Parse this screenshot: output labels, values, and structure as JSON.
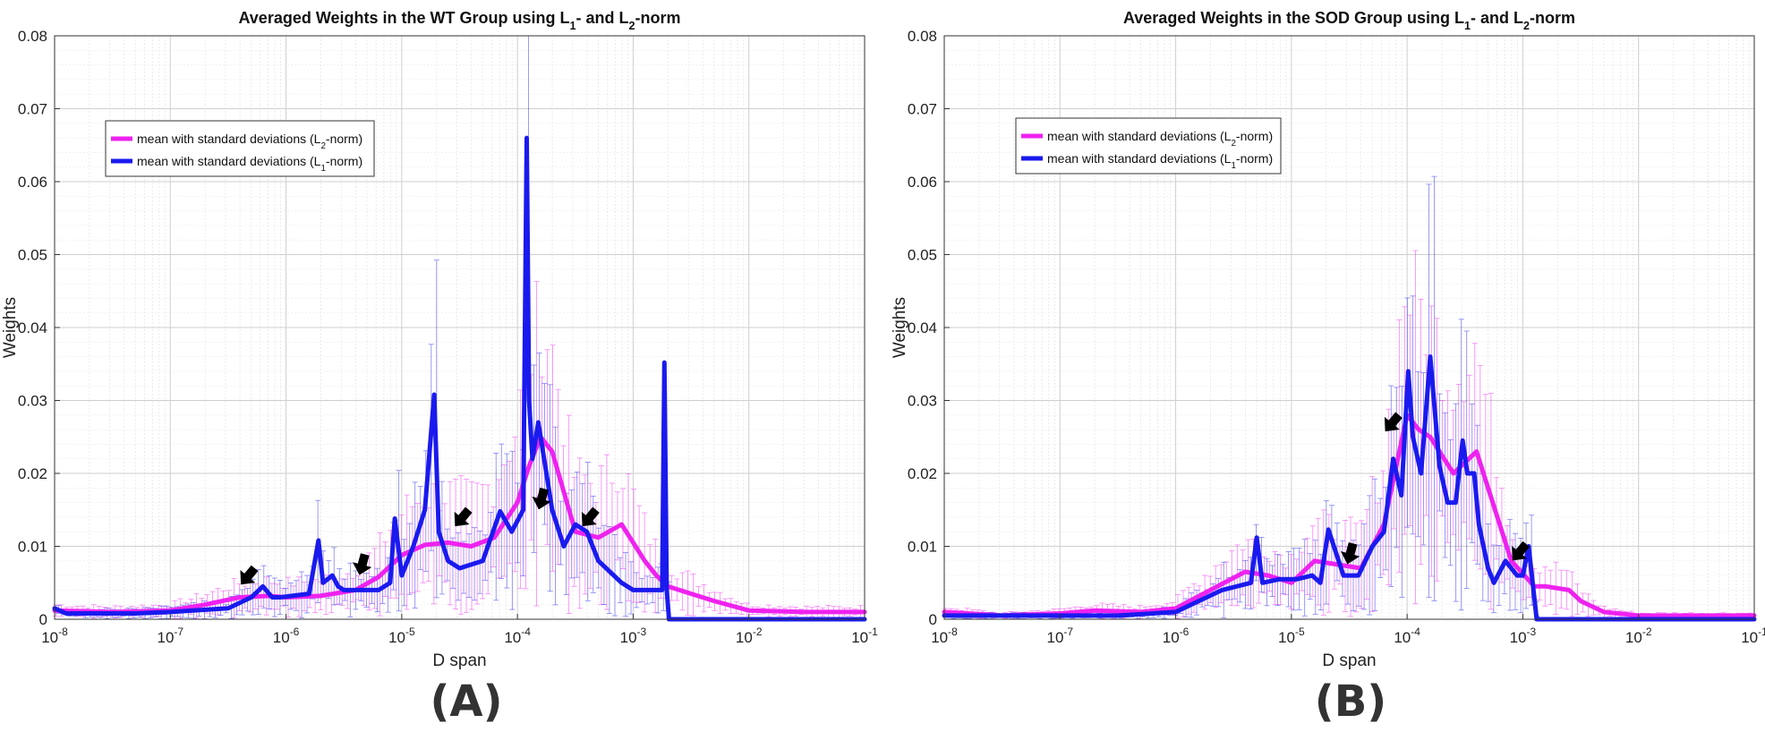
{
  "colors": {
    "l2": "#ee22ee",
    "l1": "#1a1aee",
    "arrow": "#000000",
    "grid": "#cfcfcf"
  },
  "panel_labels": [
    "(A)",
    "(B)"
  ],
  "chart_data": [
    {
      "type": "line",
      "title": "Averaged Weights in the WT Group using L1- and L2-norm",
      "title_parts": {
        "a": "Averaged Weights in the WT Group using L",
        "sub1": "1",
        "b": "- and L",
        "sub2": "2",
        "c": "-norm"
      },
      "xlabel": "D span",
      "ylabel": "Weights",
      "xscale": "log",
      "xlim": [
        1e-08,
        0.1
      ],
      "ylim": [
        0,
        0.08
      ],
      "xticks": [
        -8,
        -7,
        -6,
        -5,
        -4,
        -3,
        -2,
        -1
      ],
      "yticks": [
        0,
        0.01,
        0.02,
        0.03,
        0.04,
        0.05,
        0.06,
        0.07,
        0.08
      ],
      "ytick_labels": [
        "0",
        "0.01",
        "0.02",
        "0.03",
        "0.04",
        "0.05",
        "0.06",
        "0.07",
        "0.08"
      ],
      "grid": true,
      "legend": {
        "placement": "upper-left",
        "entries": [
          {
            "series": "l2",
            "text": "mean with standard deviations (L",
            "sub": "2",
            "tail": "-norm)"
          },
          {
            "series": "l1",
            "text": "mean with standard deviations (L",
            "sub": "1",
            "tail": "-norm)"
          }
        ]
      },
      "series": [
        {
          "name": "mean with standard deviations (L2-norm)",
          "key": "l2",
          "x_log10": [
            -8,
            -7.5,
            -7,
            -6.7,
            -6.4,
            -6.15,
            -6,
            -5.7,
            -5.4,
            -5.2,
            -5.0,
            -4.8,
            -4.6,
            -4.4,
            -4.2,
            -4.0,
            -3.9,
            -3.8,
            -3.7,
            -3.5,
            -3.3,
            -3.1,
            -2.9,
            -2.8,
            -2.7,
            -2.5,
            -2.3,
            -2,
            -1.5,
            -1
          ],
          "y": [
            0.0012,
            0.001,
            0.0012,
            0.002,
            0.003,
            0.0032,
            0.003,
            0.0032,
            0.004,
            0.0058,
            0.0088,
            0.0102,
            0.0105,
            0.01,
            0.0112,
            0.016,
            0.021,
            0.025,
            0.023,
            0.012,
            0.0112,
            0.013,
            0.008,
            0.006,
            0.0045,
            0.0035,
            0.0025,
            0.0012,
            0.001,
            0.001
          ]
        },
        {
          "name": "mean with standard deviations (L1-norm)",
          "key": "l1",
          "x_log10": [
            -8,
            -7.9,
            -7.6,
            -7.3,
            -7,
            -6.5,
            -6.3,
            -6.2,
            -6.12,
            -6.05,
            -5.8,
            -5.72,
            -5.68,
            -5.6,
            -5.55,
            -5.5,
            -5.35,
            -5.2,
            -5.1,
            -5.06,
            -5.0,
            -4.9,
            -4.8,
            -4.72,
            -4.68,
            -4.6,
            -4.5,
            -4.3,
            -4.15,
            -4.05,
            -3.95,
            -3.92,
            -3.9,
            -3.87,
            -3.82,
            -3.75,
            -3.7,
            -3.6,
            -3.5,
            -3.4,
            -3.3,
            -3.1,
            -3.0,
            -2.85,
            -2.75,
            -2.73,
            -2.71,
            -2.69,
            -2.6,
            -2,
            -1
          ],
          "y": [
            0.0015,
            0.0008,
            0.0008,
            0.0008,
            0.001,
            0.0015,
            0.003,
            0.0045,
            0.003,
            0.003,
            0.0035,
            0.0108,
            0.005,
            0.006,
            0.0045,
            0.004,
            0.004,
            0.004,
            0.005,
            0.0138,
            0.006,
            0.01,
            0.015,
            0.0308,
            0.012,
            0.008,
            0.007,
            0.008,
            0.0148,
            0.012,
            0.015,
            0.066,
            0.03,
            0.022,
            0.027,
            0.02,
            0.015,
            0.01,
            0.013,
            0.012,
            0.008,
            0.005,
            0.004,
            0.004,
            0.004,
            0.0352,
            0.004,
            0.0,
            0.0,
            0.0,
            0.0
          ]
        }
      ],
      "annotations": {
        "arrows_x_log10": [
          -6.35,
          -5.35,
          -4.5,
          -3.8,
          -3.4
        ],
        "arrows_y": [
          0.0055,
          0.007,
          0.0135,
          0.016,
          0.0135
        ]
      }
    },
    {
      "type": "line",
      "title": "Averaged Weights in the SOD Group using L1- and L2-norm",
      "title_parts": {
        "a": "Averaged Weights in the SOD Group using L",
        "sub1": "1",
        "b": "- and L",
        "sub2": "2",
        "c": "-norm"
      },
      "xlabel": "D span",
      "ylabel": "Weights",
      "xscale": "log",
      "xlim": [
        1e-08,
        0.1
      ],
      "ylim": [
        0,
        0.08
      ],
      "xticks": [
        -8,
        -7,
        -6,
        -5,
        -4,
        -3,
        -2,
        -1
      ],
      "yticks": [
        0,
        0.01,
        0.02,
        0.03,
        0.04,
        0.05,
        0.06,
        0.07,
        0.08
      ],
      "ytick_labels": [
        "0",
        "0.01",
        "0.02",
        "0.03",
        "0.04",
        "0.05",
        "0.06",
        "0.07",
        "0.08"
      ],
      "grid": true,
      "legend": {
        "placement": "upper-left",
        "entries": [
          {
            "series": "l2",
            "text": "mean with standard deviations (L",
            "sub": "2",
            "tail": "-norm)"
          },
          {
            "series": "l1",
            "text": "mean with standard deviations (L",
            "sub": "1",
            "tail": "-norm)"
          }
        ]
      },
      "series": [
        {
          "name": "mean with standard deviations (L2-norm)",
          "key": "l2",
          "x_log10": [
            -8,
            -7.5,
            -7,
            -6.7,
            -6.3,
            -6,
            -5.7,
            -5.4,
            -5.2,
            -5.0,
            -4.8,
            -4.6,
            -4.4,
            -4.2,
            -4.0,
            -3.9,
            -3.8,
            -3.6,
            -3.4,
            -3.3,
            -3.1,
            -2.9,
            -2.8,
            -2.6,
            -2.5,
            -2.3,
            -2,
            -1
          ],
          "y": [
            0.001,
            0.0005,
            0.0008,
            0.0012,
            0.001,
            0.0015,
            0.004,
            0.0065,
            0.006,
            0.005,
            0.008,
            0.0075,
            0.007,
            0.013,
            0.028,
            0.026,
            0.025,
            0.02,
            0.023,
            0.018,
            0.008,
            0.0045,
            0.0045,
            0.004,
            0.0025,
            0.001,
            0.0005,
            0.0005
          ]
        },
        {
          "name": "mean with standard deviations (L1-norm)",
          "key": "l1",
          "x_log10": [
            -8,
            -7.5,
            -7,
            -6.5,
            -6.0,
            -5.6,
            -5.35,
            -5.3,
            -5.25,
            -5.1,
            -4.95,
            -4.82,
            -4.75,
            -4.68,
            -4.55,
            -4.42,
            -4.3,
            -4.2,
            -4.12,
            -4.05,
            -3.99,
            -3.95,
            -3.88,
            -3.8,
            -3.72,
            -3.65,
            -3.58,
            -3.52,
            -3.48,
            -3.42,
            -3.38,
            -3.3,
            -3.25,
            -3.15,
            -3.05,
            -3.0,
            -2.95,
            -2.88,
            -2.8,
            -2.75,
            -2.72,
            -2.69,
            -2.6,
            -2,
            -1
          ],
          "y": [
            0.0005,
            0.0005,
            0.0005,
            0.0005,
            0.001,
            0.004,
            0.005,
            0.0112,
            0.005,
            0.0055,
            0.0055,
            0.006,
            0.005,
            0.0123,
            0.006,
            0.006,
            0.01,
            0.012,
            0.022,
            0.017,
            0.034,
            0.025,
            0.02,
            0.036,
            0.021,
            0.016,
            0.016,
            0.0245,
            0.02,
            0.02,
            0.013,
            0.007,
            0.005,
            0.008,
            0.006,
            0.006,
            0.01,
            0.0,
            0.0,
            0.0,
            0.0,
            0.0,
            0.0,
            0.0,
            0.0
          ]
        }
      ],
      "annotations": {
        "arrows_x_log10": [
          -4.15,
          -4.5,
          -3.05
        ],
        "arrows_y": [
          0.0265,
          0.0085,
          0.0088
        ]
      }
    }
  ]
}
